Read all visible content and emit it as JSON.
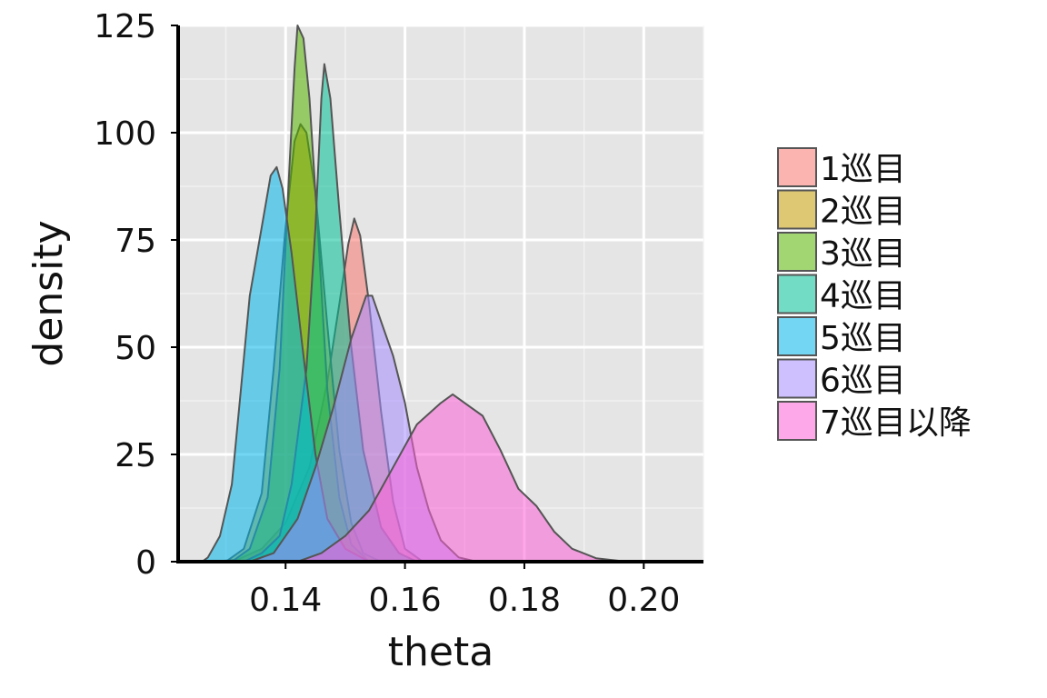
{
  "chart_data": {
    "type": "area",
    "subtype": "density",
    "title": "",
    "xlabel": "theta",
    "ylabel": "density",
    "xlim": [
      0.122,
      0.21
    ],
    "ylim": [
      0,
      125
    ],
    "x_ticks": [
      {
        "value": 0.14,
        "label": "0.14"
      },
      {
        "value": 0.16,
        "label": "0.16"
      },
      {
        "value": 0.18,
        "label": "0.18"
      },
      {
        "value": 0.2,
        "label": "0.20"
      }
    ],
    "y_ticks": [
      {
        "value": 0,
        "label": "0"
      },
      {
        "value": 25,
        "label": "25"
      },
      {
        "value": 50,
        "label": "50"
      },
      {
        "value": 75,
        "label": "75"
      },
      {
        "value": 100,
        "label": "100"
      },
      {
        "value": 125,
        "label": "125"
      }
    ],
    "grid": true,
    "legend_position": "right",
    "series": [
      {
        "name": "1巡目",
        "color": "#F8766D",
        "points": [
          [
            0.128,
            0
          ],
          [
            0.132,
            0.5
          ],
          [
            0.136,
            3
          ],
          [
            0.14,
            9
          ],
          [
            0.144,
            22
          ],
          [
            0.147,
            42
          ],
          [
            0.149,
            60
          ],
          [
            0.1505,
            74
          ],
          [
            0.1515,
            80
          ],
          [
            0.1525,
            76
          ],
          [
            0.154,
            60
          ],
          [
            0.156,
            35
          ],
          [
            0.158,
            14
          ],
          [
            0.16,
            3
          ],
          [
            0.163,
            0
          ]
        ]
      },
      {
        "name": "2巡目",
        "color": "#C49A00",
        "points": [
          [
            0.13,
            0
          ],
          [
            0.133,
            3
          ],
          [
            0.136,
            16
          ],
          [
            0.138,
            45
          ],
          [
            0.14,
            78
          ],
          [
            0.1415,
            98
          ],
          [
            0.1425,
            102
          ],
          [
            0.1435,
            100
          ],
          [
            0.145,
            86
          ],
          [
            0.147,
            55
          ],
          [
            0.149,
            26
          ],
          [
            0.151,
            9
          ],
          [
            0.153,
            2
          ],
          [
            0.156,
            0
          ]
        ]
      },
      {
        "name": "3巡目",
        "color": "#53B400",
        "points": [
          [
            0.131,
            0
          ],
          [
            0.134,
            3
          ],
          [
            0.137,
            15
          ],
          [
            0.139,
            45
          ],
          [
            0.1405,
            88
          ],
          [
            0.1415,
            115
          ],
          [
            0.142,
            125
          ],
          [
            0.143,
            122
          ],
          [
            0.144,
            108
          ],
          [
            0.1455,
            75
          ],
          [
            0.147,
            40
          ],
          [
            0.149,
            15
          ],
          [
            0.151,
            4
          ],
          [
            0.154,
            0
          ]
        ]
      },
      {
        "name": "4巡目",
        "color": "#00C094",
        "points": [
          [
            0.133,
            0
          ],
          [
            0.136,
            2
          ],
          [
            0.139,
            6
          ],
          [
            0.141,
            18
          ],
          [
            0.1435,
            45
          ],
          [
            0.145,
            78
          ],
          [
            0.146,
            108
          ],
          [
            0.1465,
            116
          ],
          [
            0.1475,
            108
          ],
          [
            0.149,
            82
          ],
          [
            0.151,
            50
          ],
          [
            0.153,
            26
          ],
          [
            0.156,
            8
          ],
          [
            0.159,
            2
          ],
          [
            0.162,
            0
          ]
        ]
      },
      {
        "name": "5巡目",
        "color": "#00B6EB",
        "points": [
          [
            0.126,
            0
          ],
          [
            0.127,
            1
          ],
          [
            0.129,
            6
          ],
          [
            0.131,
            18
          ],
          [
            0.1325,
            40
          ],
          [
            0.134,
            62
          ],
          [
            0.136,
            78
          ],
          [
            0.1375,
            90
          ],
          [
            0.1385,
            92
          ],
          [
            0.1395,
            87
          ],
          [
            0.141,
            72
          ],
          [
            0.143,
            48
          ],
          [
            0.145,
            25
          ],
          [
            0.147,
            10
          ],
          [
            0.15,
            3
          ],
          [
            0.154,
            0
          ]
        ]
      },
      {
        "name": "6巡目",
        "color": "#A58AFF",
        "points": [
          [
            0.134,
            0
          ],
          [
            0.138,
            2
          ],
          [
            0.142,
            10
          ],
          [
            0.145,
            22
          ],
          [
            0.148,
            36
          ],
          [
            0.151,
            52
          ],
          [
            0.1535,
            62
          ],
          [
            0.1545,
            62
          ],
          [
            0.156,
            56
          ],
          [
            0.158,
            48
          ],
          [
            0.16,
            37
          ],
          [
            0.162,
            22
          ],
          [
            0.164,
            12
          ],
          [
            0.166,
            5
          ],
          [
            0.169,
            1
          ],
          [
            0.172,
            0
          ]
        ]
      },
      {
        "name": "7巡目以降",
        "color": "#FB61D7",
        "points": [
          [
            0.142,
            0
          ],
          [
            0.146,
            2
          ],
          [
            0.15,
            6
          ],
          [
            0.154,
            12
          ],
          [
            0.158,
            22
          ],
          [
            0.162,
            32
          ],
          [
            0.166,
            37
          ],
          [
            0.168,
            39
          ],
          [
            0.17,
            37
          ],
          [
            0.173,
            34
          ],
          [
            0.176,
            26
          ],
          [
            0.179,
            17
          ],
          [
            0.182,
            13
          ],
          [
            0.185,
            7
          ],
          [
            0.188,
            3
          ],
          [
            0.192,
            0.8
          ],
          [
            0.196,
            0.2
          ],
          [
            0.2,
            0
          ],
          [
            0.206,
            0
          ]
        ]
      }
    ]
  }
}
